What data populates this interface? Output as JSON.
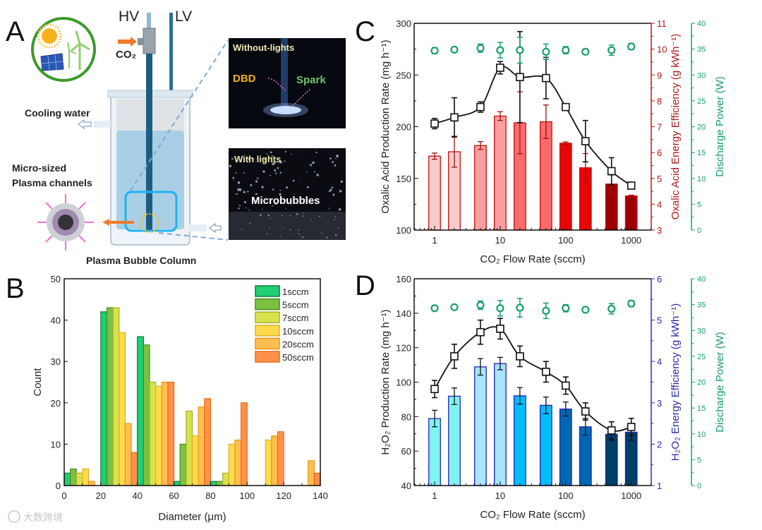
{
  "panel_labels": [
    "A",
    "B",
    "C",
    "D"
  ],
  "panel_a": {
    "hv": "HV",
    "lv": "LV",
    "co2": "CO₂",
    "cooling_water": "Cooling water",
    "micro_sized": "Micro-sized",
    "plasma_channels": "Plasma channels",
    "caption": "Plasma Bubble Column",
    "photo_top_title": "Without-lights",
    "photo_top_dbd": "DBD",
    "photo_top_spark": "Spark",
    "photo_bottom_title": "With lights",
    "photo_bottom_label": "Microbubbles",
    "colors": {
      "dbd": "#f2b21b",
      "spark": "#6fc46f",
      "ring": "#3a9a2a",
      "tank_water": "#a9cfe6",
      "highlight": "#1eb4f0"
    }
  },
  "watermark": "大数跨境",
  "chart_data": [
    {
      "id": "B",
      "type": "bar",
      "title": "",
      "xlabel": "Diameter (μm)",
      "ylabel": "Count",
      "xlim": [
        0,
        140
      ],
      "ylim": [
        0,
        50
      ],
      "xticks": [
        0,
        20,
        40,
        60,
        80,
        100,
        120,
        140
      ],
      "yticks": [
        0,
        10,
        20,
        30,
        40,
        50
      ],
      "legend_position": "top-right",
      "bin_starts": [
        0,
        20,
        40,
        60,
        80,
        100,
        120
      ],
      "bin_width": 20,
      "series": [
        {
          "name": "1sccm",
          "color": "#1fcf74",
          "edge": "#0c7a3a",
          "values": [
            3,
            42,
            36,
            1,
            1,
            0,
            0
          ]
        },
        {
          "name": "5sccm",
          "color": "#7cc242",
          "edge": "#4a8a1f",
          "values": [
            4,
            43,
            34,
            10,
            1,
            0,
            0
          ]
        },
        {
          "name": "7sccm",
          "color": "#d8e24c",
          "edge": "#a6b02a",
          "values": [
            3,
            43,
            25,
            18,
            3,
            0,
            0
          ]
        },
        {
          "name": "10sccm",
          "color": "#ffda4d",
          "edge": "#e0b020",
          "values": [
            4,
            37,
            24,
            12,
            10,
            11,
            0
          ]
        },
        {
          "name": "20sccm",
          "color": "#ffbf50",
          "edge": "#e8961a",
          "values": [
            1,
            15,
            25,
            19,
            11,
            12,
            6
          ]
        },
        {
          "name": "50sccm",
          "color": "#ff924a",
          "edge": "#e86a18",
          "values": [
            0,
            8,
            25,
            21,
            20,
            13,
            3
          ]
        }
      ]
    },
    {
      "id": "C",
      "type": "bar",
      "xlabel": "CO₂ Flow Rate (sccm)",
      "ylabel": "Oxalic Acid Production Rate (mg h⁻¹)",
      "y2label": "Oxalic Acid Energy Efficiency (g kWh⁻¹)",
      "y3label": "Discharge Power (W)",
      "xscale": "log",
      "x": [
        1,
        2,
        5,
        10,
        20,
        50,
        100,
        200,
        500,
        1000
      ],
      "xticks": [
        1,
        10,
        100,
        1000
      ],
      "ylim": [
        100,
        300
      ],
      "yticks": [
        100,
        150,
        200,
        250,
        300
      ],
      "y2lim": [
        3,
        11
      ],
      "y2ticks": [
        3,
        4,
        5,
        6,
        7,
        8,
        9,
        10,
        11
      ],
      "y3lim": [
        0,
        40
      ],
      "y3ticks": [
        0,
        5,
        10,
        15,
        20,
        25,
        30,
        35,
        40
      ],
      "colors": {
        "axis2": "#b01818",
        "axis3": "#17a06a",
        "bar_edge": "#c41010",
        "line": "#111111"
      },
      "production_rate": {
        "values": [
          203,
          209,
          219,
          257,
          248,
          247,
          219,
          186,
          157,
          143
        ],
        "errors": [
          5,
          19,
          5,
          6,
          44,
          20,
          3,
          20,
          13,
          2
        ]
      },
      "energy_efficiency": {
        "values": [
          5.86,
          6.03,
          6.27,
          7.41,
          7.15,
          7.19,
          6.36,
          5.41,
          4.78,
          4.32
        ],
        "errors": [
          0.12,
          0.6,
          0.15,
          0.17,
          1.2,
          0.65,
          0.05,
          0.55,
          0.35,
          0.03
        ],
        "bar_colors": [
          "#f9cccc",
          "#f9cccc",
          "#fa9f9f",
          "#fa9f9f",
          "#fb6b6b",
          "#fb6b6b",
          "#e80606",
          "#e80606",
          "#9c0000",
          "#9c0000"
        ]
      },
      "discharge_power": {
        "values": [
          34.7,
          34.9,
          35.2,
          34.8,
          34.8,
          34.5,
          34.8,
          34.5,
          34.8,
          35.5
        ],
        "errors": [
          0.6,
          0.3,
          0.8,
          1.5,
          2.5,
          1.5,
          0.7,
          0.5,
          1.0,
          0.6
        ]
      }
    },
    {
      "id": "D",
      "type": "bar",
      "xlabel": "CO₂ Flow Rate (sccm)",
      "ylabel": "H₂O₂ Production Rate (mg h⁻¹)",
      "y2label": "H₂O₂ Energy Efficiency (g kWh⁻¹)",
      "y3label": "Discharge Power (W)",
      "xscale": "log",
      "x": [
        1,
        2,
        5,
        10,
        20,
        50,
        100,
        200,
        500,
        1000
      ],
      "xticks": [
        1,
        10,
        100,
        1000
      ],
      "ylim": [
        40,
        160
      ],
      "yticks": [
        40,
        60,
        80,
        100,
        120,
        140,
        160
      ],
      "y2lim": [
        1,
        6
      ],
      "y2ticks": [
        1,
        2,
        3,
        4,
        5,
        6
      ],
      "y3lim": [
        0,
        40
      ],
      "y3ticks": [
        0,
        5,
        10,
        15,
        20,
        25,
        30,
        35,
        40
      ],
      "colors": {
        "axis2": "#2a2ab0",
        "axis3": "#17a06a",
        "bar_edge": "#2424b4",
        "line": "#111111"
      },
      "production_rate": {
        "values": [
          96,
          115,
          129,
          131,
          115,
          106,
          98,
          83,
          72,
          74
        ],
        "errors": [
          5,
          7,
          7,
          6,
          6,
          6,
          5,
          5,
          5,
          5
        ]
      },
      "energy_efficiency": {
        "values": [
          2.62,
          3.16,
          3.87,
          3.95,
          3.17,
          2.94,
          2.85,
          2.42,
          2.24,
          2.29
        ],
        "errors": [
          0.2,
          0.2,
          0.2,
          0.15,
          0.2,
          0.2,
          0.17,
          0.2,
          0.15,
          0.2
        ],
        "bar_colors": [
          "#80f4f4",
          "#80f4f4",
          "#a6e5fb",
          "#a6e5fb",
          "#00bdfc",
          "#00bdfc",
          "#0068b3",
          "#0068b3",
          "#003f66",
          "#003f66"
        ]
      },
      "discharge_power": {
        "values": [
          34.3,
          34.5,
          34.9,
          34.3,
          34.4,
          33.8,
          34.3,
          34.0,
          34.2,
          35.2
        ],
        "errors": [
          0.5,
          0.3,
          0.8,
          1.5,
          1.8,
          1.5,
          0.7,
          0.5,
          1.0,
          0.6
        ]
      }
    }
  ]
}
